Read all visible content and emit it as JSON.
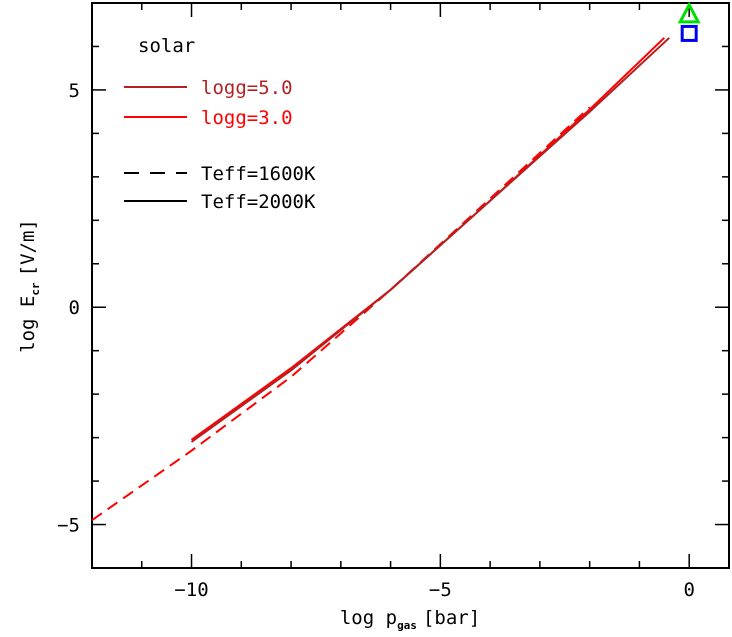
{
  "chart_data": {
    "type": "line",
    "xlabel": {
      "main": "log p",
      "sub": "gas",
      "tail": "[bar]"
    },
    "ylabel": {
      "main": "log E",
      "sub": "cr",
      "tail": "[V/m]"
    },
    "xlim": [
      -12,
      0.8
    ],
    "ylim": [
      -6,
      7
    ],
    "x_ticks_major": [
      -10,
      -5,
      0
    ],
    "x_ticks_minor": [
      -11,
      -9,
      -8,
      -7,
      -6,
      -4,
      -3,
      -2,
      -1
    ],
    "y_ticks_major": [
      -5,
      0,
      5
    ],
    "y_ticks_minor": [
      -4,
      -3,
      -2,
      -1,
      1,
      2,
      3,
      4,
      6
    ],
    "x_tick_labels": [
      "−10",
      "−5",
      "0"
    ],
    "y_tick_labels": [
      "−5",
      "0",
      "5"
    ],
    "annotation": "solar",
    "legend": [
      {
        "label": "logg=5.0",
        "color": "#b22222",
        "style": "solid"
      },
      {
        "label": "logg=3.0",
        "color": "#ff0000",
        "style": "solid"
      },
      {
        "label": "Teff=1600K",
        "color": "#000000",
        "style": "dashed"
      },
      {
        "label": "Teff=2000K",
        "color": "#000000",
        "style": "solid"
      }
    ],
    "series": [
      {
        "name": "logg=3.0, Teff=1600K",
        "color": "#ff0000",
        "style": "dashed",
        "x": [
          -12,
          -10,
          -8,
          -6,
          -4,
          -2
        ],
        "y": [
          -4.9,
          -3.3,
          -1.6,
          0.4,
          2.5,
          4.6
        ]
      },
      {
        "name": "logg=3.0, Teff=2000K",
        "color": "#ff0000",
        "style": "solid",
        "x": [
          -10,
          -8,
          -6,
          -4,
          -2,
          -0.5
        ],
        "y": [
          -3.05,
          -1.4,
          0.4,
          2.45,
          4.55,
          6.2
        ]
      },
      {
        "name": "logg=5.0, Teff=2000K",
        "color": "#b22222",
        "style": "solid",
        "x": [
          -10,
          -8,
          -6,
          -4,
          -2,
          -0.4
        ],
        "y": [
          -3.1,
          -1.45,
          0.4,
          2.45,
          4.5,
          6.2
        ]
      }
    ],
    "markers": [
      {
        "shape": "triangle",
        "color": "#00dd00",
        "x": 0,
        "y": 6.75
      },
      {
        "shape": "square",
        "color": "#0000ee",
        "x": 0,
        "y": 6.3
      }
    ]
  }
}
